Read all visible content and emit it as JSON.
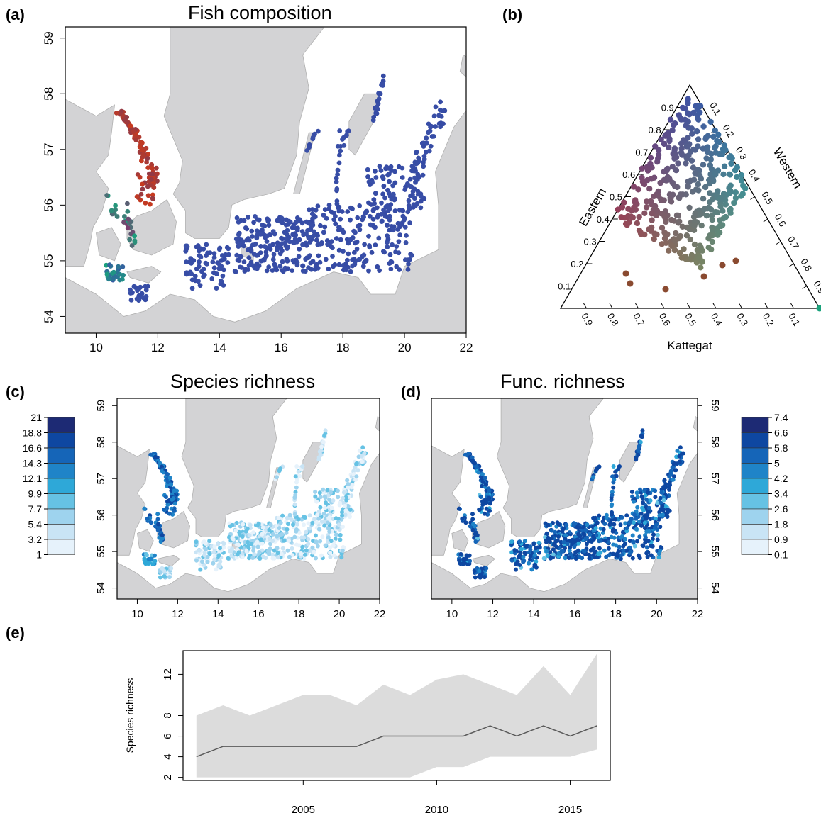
{
  "panels": {
    "a": {
      "tag": "(a)",
      "title": "Fish composition"
    },
    "b": {
      "tag": "(b)"
    },
    "c": {
      "tag": "(c)",
      "title": "Species richness"
    },
    "d": {
      "tag": "(d)",
      "title": "Func. richness"
    },
    "e": {
      "tag": "(e)"
    }
  },
  "colors": {
    "land": "#d3d3d5",
    "water": "#ffffff",
    "eastern": "#3a50a8",
    "western": "#1aa27c",
    "kattegat": "#c83a1e",
    "band": "#dcdcdc",
    "line": "#5a5a5a"
  },
  "map_axes": {
    "x_ticks": [
      "10",
      "12",
      "14",
      "16",
      "18",
      "20",
      "22"
    ],
    "y_ticks": [
      "54",
      "55",
      "56",
      "57",
      "58",
      "59"
    ]
  },
  "ternary": {
    "left_label": "Eastern",
    "right_label": "Western",
    "bottom_label": "Kattegat",
    "left_ticks": [
      "0.1",
      "0.2",
      "0.3",
      "0.4",
      "0.5",
      "0.6",
      "0.7",
      "0.8",
      "0.9"
    ],
    "right_ticks": [
      "0.1",
      "0.2",
      "0.3",
      "0.4",
      "0.5",
      "0.6",
      "0.7",
      "0.8",
      "0.9"
    ],
    "bottom_ticks": [
      "0.9",
      "0.8",
      "0.7",
      "0.6",
      "0.5",
      "0.4",
      "0.3",
      "0.2",
      "0.1"
    ]
  },
  "legend_species": {
    "labels": [
      "21",
      "18.8",
      "16.6",
      "14.3",
      "12.1",
      "9.9",
      "7.7",
      "5.4",
      "3.2",
      "1"
    ],
    "colors": [
      "#1d2a74",
      "#0e47a1",
      "#1565b8",
      "#1f84c8",
      "#2ea8d8",
      "#66c2e4",
      "#9ed3ee",
      "#c9e4f5",
      "#e6f2fb"
    ]
  },
  "legend_func": {
    "labels": [
      "7.4",
      "6.6",
      "5.8",
      "5",
      "4.2",
      "3.4",
      "2.6",
      "1.8",
      "0.9",
      "0.1"
    ],
    "colors": [
      "#1d2a74",
      "#0e47a1",
      "#1565b8",
      "#1f84c8",
      "#2ea8d8",
      "#66c2e4",
      "#9ed3ee",
      "#c9e4f5",
      "#e6f2fb"
    ]
  },
  "chart_data": {
    "type": "line",
    "ylabel": "Species richness",
    "x_ticks": [
      "2005",
      "2010",
      "2015"
    ],
    "y_ticks": [
      "2",
      "4",
      "6",
      "8",
      "12"
    ],
    "ylim": [
      1.7,
      14.3
    ],
    "xlim": [
      2000.5,
      2016.5
    ],
    "x": [
      2001,
      2002,
      2003,
      2004,
      2005,
      2006,
      2007,
      2008,
      2009,
      2010,
      2011,
      2012,
      2013,
      2014,
      2015,
      2016
    ],
    "series": [
      {
        "values": [
          4,
          5,
          5,
          5,
          5,
          5,
          5,
          6,
          6,
          6,
          6,
          7,
          6,
          7,
          6,
          7
        ]
      }
    ],
    "band_upper": [
      8,
      9,
      8,
      9,
      10,
      10,
      9,
      11,
      10,
      11.5,
      12,
      11,
      10,
      12.8,
      10,
      14
    ],
    "band_lower": [
      2,
      2,
      2,
      2,
      2,
      2,
      2,
      2,
      2,
      3,
      3,
      4,
      4,
      4,
      4,
      4.7
    ]
  }
}
